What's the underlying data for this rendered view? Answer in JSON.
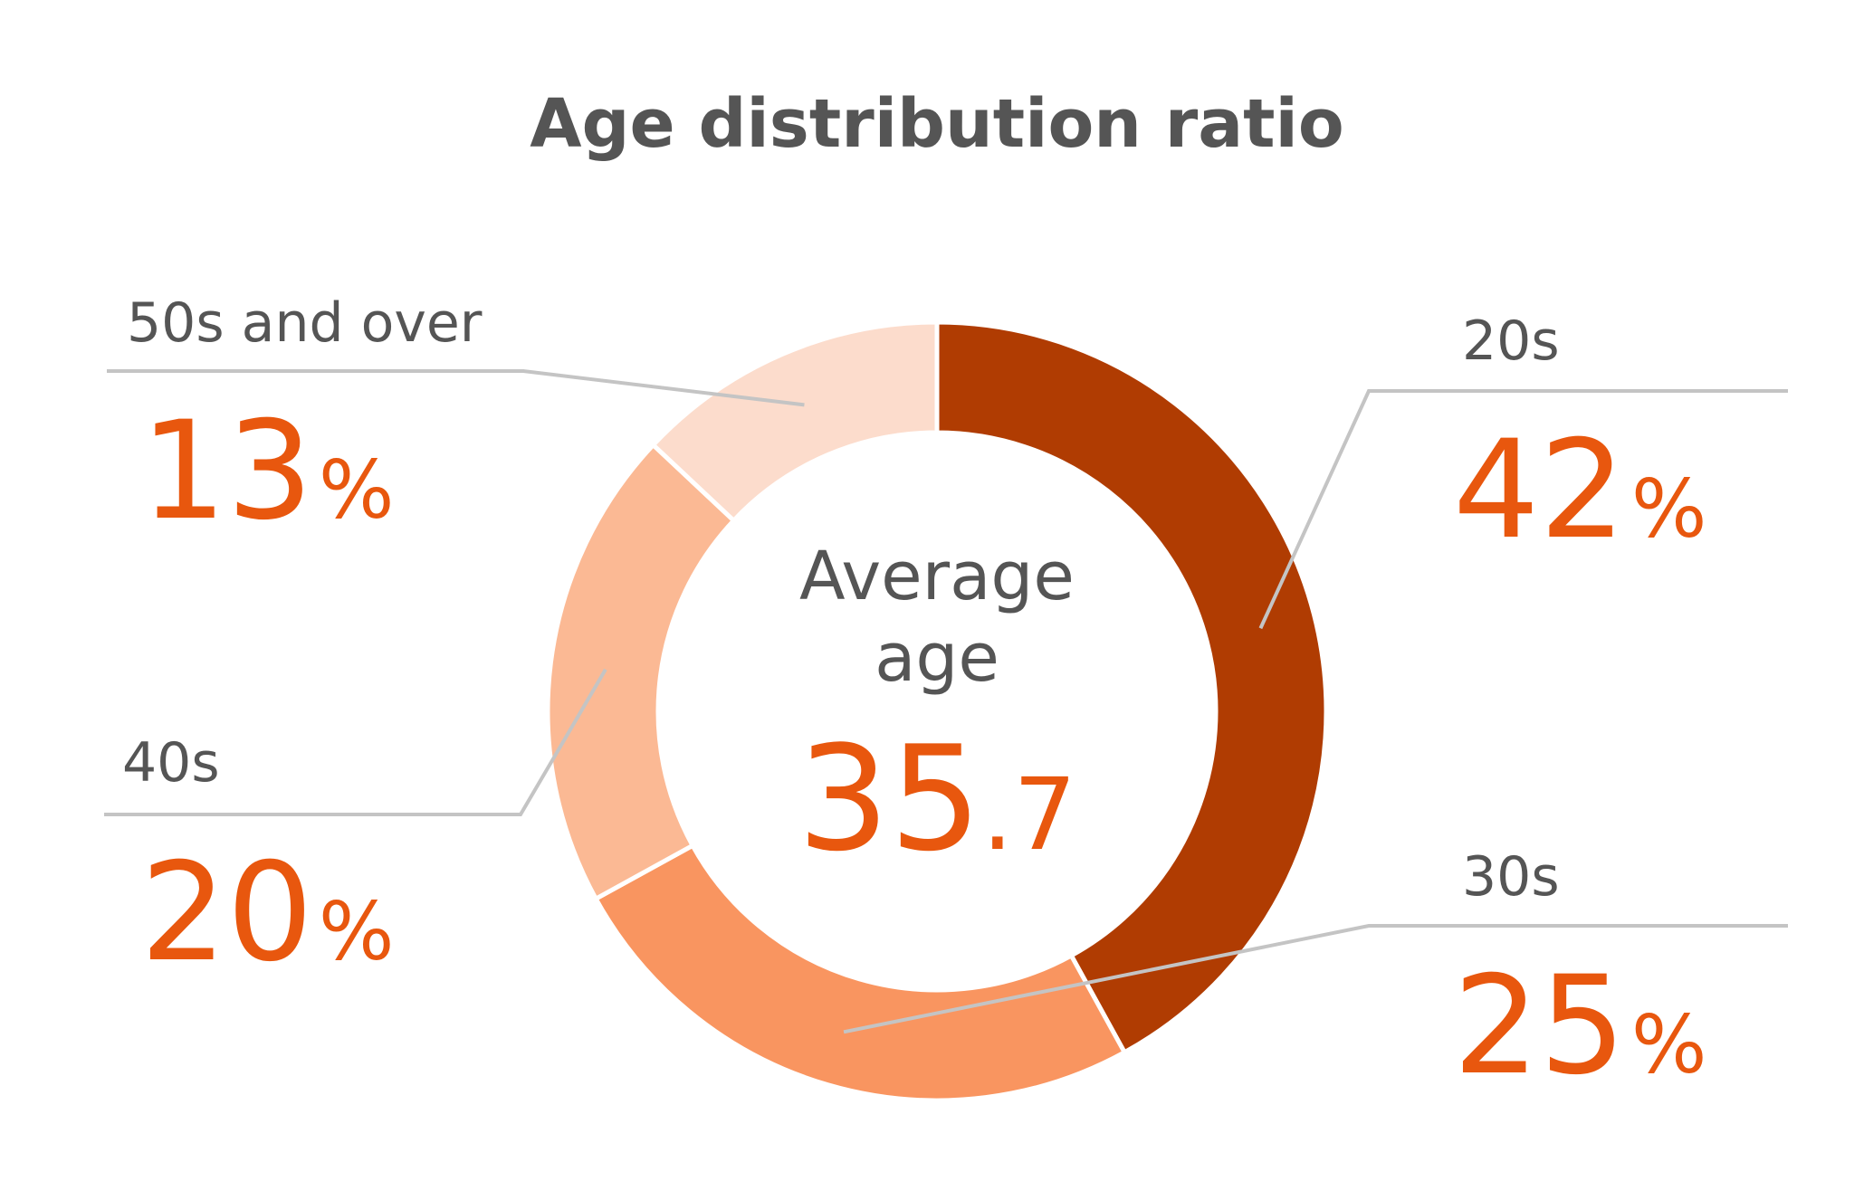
{
  "chart_data": {
    "type": "pie",
    "title": "Age distribution ratio",
    "unit": "%",
    "categories": [
      "20s",
      "30s",
      "40s",
      "50s and over"
    ],
    "values": [
      42,
      25,
      20,
      13
    ],
    "colors": [
      "#b03c02",
      "#f99560",
      "#fbb994",
      "#fcdccc"
    ],
    "center": {
      "label_line1": "Average",
      "label_line2": "age",
      "value_int": "35",
      "value_dec": ".7"
    }
  }
}
